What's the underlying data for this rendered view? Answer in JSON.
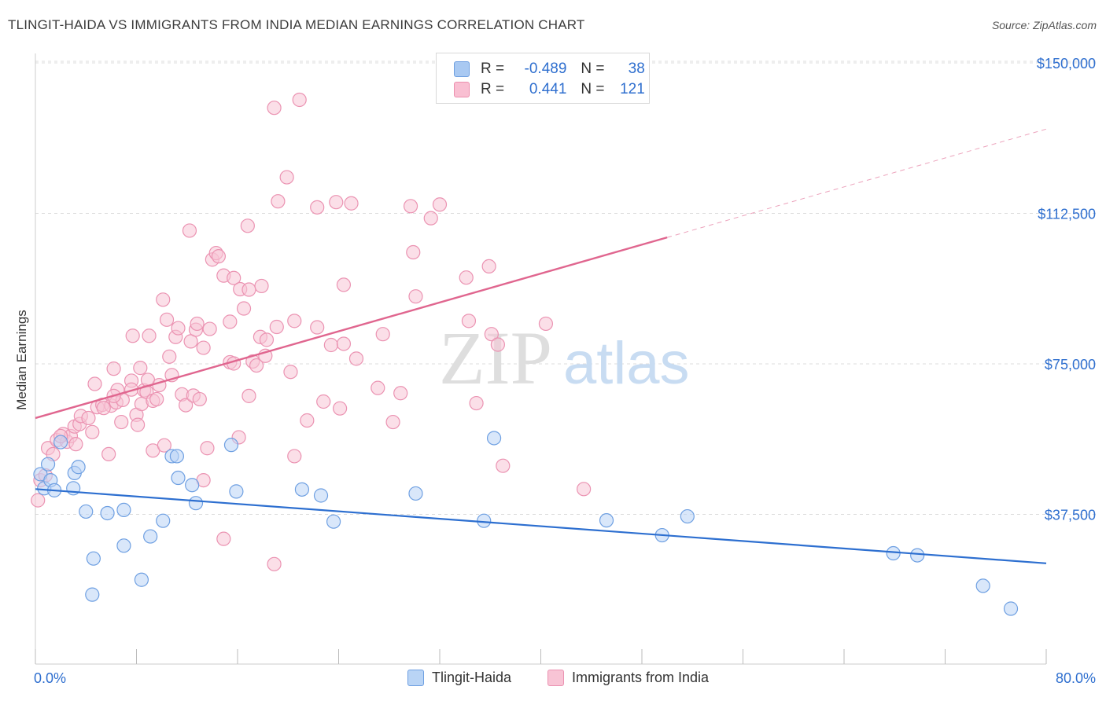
{
  "title": "TLINGIT-HAIDA VS IMMIGRANTS FROM INDIA MEDIAN EARNINGS CORRELATION CHART",
  "source": "Source: ZipAtlas.com",
  "watermark": {
    "zip": "ZIP",
    "atlas": "atlas"
  },
  "legend_top": {
    "rows": [
      {
        "r_label": "R =",
        "r_value": "-0.489",
        "n_label": "N =",
        "n_value": "38",
        "color": "#a9c9f2",
        "border": "#6f9fe0"
      },
      {
        "r_label": "R =",
        "r_value": "0.441",
        "n_label": "N =",
        "n_value": "121",
        "color": "#f9bfd2",
        "border": "#ec8fae"
      }
    ]
  },
  "colors": {
    "blue_fill": "#b9d4f5",
    "blue_stroke": "#6fa0e2",
    "blue_line": "#2d6fd0",
    "pink_fill": "#f8c4d5",
    "pink_stroke": "#eb93b2",
    "pink_line": "#e0668f",
    "axis_label": "#2f6fcf",
    "grid": "#dcdcdc"
  },
  "chart_data": {
    "type": "scatter",
    "title": "TLINGIT-HAIDA VS IMMIGRANTS FROM INDIA MEDIAN EARNINGS CORRELATION CHART",
    "xlabel": "",
    "ylabel": "Median Earnings",
    "xlim": [
      0,
      80
    ],
    "ylim": [
      0,
      155000
    ],
    "x_tick_labels": [
      "0.0%",
      "80.0%"
    ],
    "y_ticks": [
      37500,
      75000,
      112500,
      150000
    ],
    "y_tick_labels": [
      "$37,500",
      "$75,000",
      "$112,500",
      "$150,000"
    ],
    "grid": true,
    "legend_position": "bottom",
    "series": [
      {
        "name": "Tlingit-Haida",
        "color": "blue",
        "points": [
          [
            0.4,
            47500
          ],
          [
            0.7,
            44000
          ],
          [
            1.0,
            50000
          ],
          [
            1.2,
            46000
          ],
          [
            1.5,
            43500
          ],
          [
            2.0,
            55500
          ],
          [
            3.0,
            44000
          ],
          [
            3.1,
            47800
          ],
          [
            3.4,
            49300
          ],
          [
            4.0,
            38200
          ],
          [
            4.6,
            26500
          ],
          [
            4.5,
            17500
          ],
          [
            5.7,
            37800
          ],
          [
            7.0,
            38600
          ],
          [
            7.0,
            29700
          ],
          [
            8.4,
            21200
          ],
          [
            9.1,
            32000
          ],
          [
            10.1,
            35900
          ],
          [
            10.8,
            52000
          ],
          [
            11.2,
            52000
          ],
          [
            11.3,
            46600
          ],
          [
            12.4,
            44800
          ],
          [
            12.7,
            40300
          ],
          [
            15.5,
            54800
          ],
          [
            15.9,
            43200
          ],
          [
            21.1,
            43700
          ],
          [
            22.6,
            42200
          ],
          [
            23.6,
            35700
          ],
          [
            30.1,
            42700
          ],
          [
            35.5,
            35900
          ],
          [
            36.3,
            56500
          ],
          [
            45.2,
            36000
          ],
          [
            49.6,
            32300
          ],
          [
            51.6,
            37000
          ],
          [
            67.9,
            27800
          ],
          [
            69.8,
            27300
          ],
          [
            75.0,
            19700
          ],
          [
            77.2,
            14000
          ]
        ]
      },
      {
        "name": "Immigrants from India",
        "color": "pink",
        "points": [
          [
            0.2,
            41000
          ],
          [
            0.4,
            46000
          ],
          [
            0.8,
            47200
          ],
          [
            1.0,
            54000
          ],
          [
            1.4,
            52500
          ],
          [
            1.7,
            56000
          ],
          [
            2.2,
            57500
          ],
          [
            2.5,
            55600
          ],
          [
            2.8,
            57000
          ],
          [
            3.1,
            59400
          ],
          [
            3.5,
            60000
          ],
          [
            3.6,
            62000
          ],
          [
            4.2,
            61500
          ],
          [
            4.5,
            58000
          ],
          [
            4.7,
            70000
          ],
          [
            4.9,
            64200
          ],
          [
            5.3,
            64800
          ],
          [
            5.8,
            52500
          ],
          [
            6.0,
            64600
          ],
          [
            6.2,
            73800
          ],
          [
            6.4,
            65400
          ],
          [
            6.5,
            68500
          ],
          [
            6.8,
            60500
          ],
          [
            6.9,
            66000
          ],
          [
            7.6,
            70800
          ],
          [
            7.6,
            68600
          ],
          [
            8.0,
            62300
          ],
          [
            8.1,
            59800
          ],
          [
            8.4,
            65000
          ],
          [
            8.6,
            68400
          ],
          [
            8.8,
            68000
          ],
          [
            8.9,
            71000
          ],
          [
            9.3,
            65800
          ],
          [
            9.6,
            66200
          ],
          [
            9.3,
            53400
          ],
          [
            9.8,
            69700
          ],
          [
            10.1,
            91000
          ],
          [
            10.2,
            54700
          ],
          [
            10.6,
            76800
          ],
          [
            10.8,
            72200
          ],
          [
            11.1,
            81700
          ],
          [
            11.3,
            83900
          ],
          [
            11.6,
            67400
          ],
          [
            11.9,
            64700
          ],
          [
            12.2,
            108200
          ],
          [
            12.3,
            80600
          ],
          [
            12.5,
            67100
          ],
          [
            12.7,
            83500
          ],
          [
            13.0,
            66200
          ],
          [
            13.3,
            46000
          ],
          [
            13.6,
            54000
          ],
          [
            13.8,
            83700
          ],
          [
            14.0,
            101000
          ],
          [
            14.3,
            102600
          ],
          [
            14.5,
            101800
          ],
          [
            14.9,
            31400
          ],
          [
            14.9,
            97000
          ],
          [
            15.4,
            85500
          ],
          [
            15.4,
            75400
          ],
          [
            15.7,
            75100
          ],
          [
            15.7,
            96400
          ],
          [
            16.1,
            56700
          ],
          [
            16.2,
            93600
          ],
          [
            16.5,
            88800
          ],
          [
            16.8,
            109400
          ],
          [
            16.9,
            93500
          ],
          [
            17.2,
            75600
          ],
          [
            17.5,
            74600
          ],
          [
            17.8,
            81700
          ],
          [
            17.9,
            94400
          ],
          [
            18.3,
            81000
          ],
          [
            18.9,
            138800
          ],
          [
            18.9,
            25100
          ],
          [
            19.1,
            84200
          ],
          [
            19.2,
            115500
          ],
          [
            19.9,
            121500
          ],
          [
            20.5,
            85700
          ],
          [
            20.5,
            52000
          ],
          [
            20.9,
            140800
          ],
          [
            21.5,
            60900
          ],
          [
            22.3,
            114000
          ],
          [
            22.3,
            84100
          ],
          [
            22.8,
            65600
          ],
          [
            23.4,
            79700
          ],
          [
            23.8,
            115300
          ],
          [
            24.1,
            63900
          ],
          [
            24.4,
            94700
          ],
          [
            25.0,
            115000
          ],
          [
            25.4,
            76300
          ],
          [
            27.1,
            69000
          ],
          [
            27.5,
            82400
          ],
          [
            28.3,
            60500
          ],
          [
            28.9,
            67700
          ],
          [
            29.7,
            114300
          ],
          [
            29.9,
            102800
          ],
          [
            30.1,
            91800
          ],
          [
            31.3,
            111300
          ],
          [
            32.0,
            114700
          ],
          [
            34.1,
            96500
          ],
          [
            34.3,
            85700
          ],
          [
            34.9,
            65200
          ],
          [
            35.9,
            99300
          ],
          [
            36.1,
            82400
          ],
          [
            36.6,
            79800
          ],
          [
            37.0,
            49600
          ],
          [
            40.4,
            85000
          ],
          [
            43.4,
            43800
          ],
          [
            7.7,
            82000
          ],
          [
            9.0,
            82000
          ],
          [
            12.8,
            85000
          ],
          [
            2.0,
            57000
          ],
          [
            3.2,
            55000
          ],
          [
            5.4,
            64000
          ],
          [
            6.2,
            67000
          ],
          [
            8.3,
            74000
          ],
          [
            10.4,
            86000
          ],
          [
            13.3,
            79000
          ],
          [
            16.9,
            67000
          ],
          [
            18.2,
            77000
          ],
          [
            20.2,
            73000
          ],
          [
            24.4,
            80000
          ]
        ]
      }
    ],
    "trend_lines": [
      {
        "series": "Tlingit-Haida",
        "x": [
          0,
          80
        ],
        "y": [
          43800,
          25300
        ],
        "dashed_extension": false
      },
      {
        "series": "Immigrants from India",
        "x": [
          0,
          50
        ],
        "y": [
          61500,
          106500
        ],
        "dashed_to": [
          80,
          133500
        ]
      }
    ]
  },
  "bottom_legend": [
    {
      "label": "Tlingit-Haida",
      "color": "#b9d4f5",
      "border": "#6fa0e2"
    },
    {
      "label": "Immigrants from India",
      "color": "#f8c4d5",
      "border": "#eb93b2"
    }
  ]
}
